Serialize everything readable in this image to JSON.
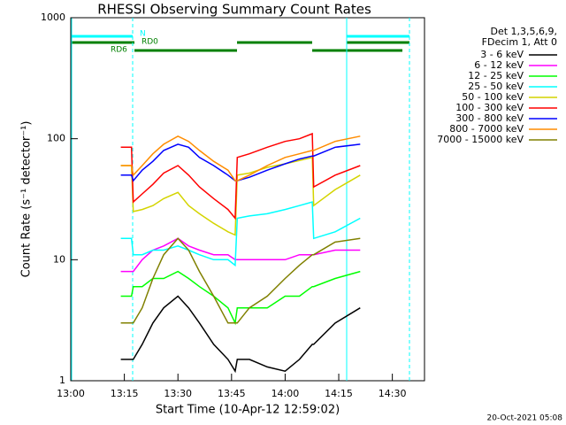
{
  "chart_data": {
    "type": "line",
    "title": "RHESSI Observing Summary Count Rates",
    "xlabel": "Start Time (10-Apr-12 12:59:02)",
    "ylabel": "Count Rate (s⁻¹ detector⁻¹)",
    "footer": "20-Oct-2021 05:08",
    "legend_title": [
      "Det 1,3,5,6,9,",
      "FDecim 1, Att 0"
    ],
    "annotations": [
      "N",
      "RD0",
      "RD6"
    ],
    "log_y": true,
    "xlim": [
      0,
      99
    ],
    "ylim": [
      1,
      1000
    ],
    "xticks": [
      {
        "value": 0,
        "label": "13:00"
      },
      {
        "value": 15,
        "label": "13:15"
      },
      {
        "value": 30,
        "label": "13:30"
      },
      {
        "value": 45,
        "label": "13:45"
      },
      {
        "value": 60,
        "label": "14:00"
      },
      {
        "value": 75,
        "label": "14:15"
      },
      {
        "value": 90,
        "label": "14:30"
      }
    ],
    "yticks": [
      1,
      10,
      100,
      1000
    ],
    "x": [
      14,
      17,
      17.5,
      20,
      23,
      26,
      30,
      33,
      36,
      40,
      44,
      46,
      46.6,
      50,
      55,
      60,
      64,
      67.6,
      68,
      74,
      81
    ],
    "series": [
      {
        "name": "3 - 6 keV",
        "color": "#000000",
        "values": [
          1.5,
          1.5,
          1.5,
          2,
          3,
          4,
          5,
          4,
          3,
          2,
          1.5,
          1.2,
          1.5,
          1.5,
          1.3,
          1.2,
          1.5,
          2,
          2,
          3,
          4
        ]
      },
      {
        "name": "6 - 12 keV",
        "color": "#ff00ff",
        "values": [
          8,
          8,
          8,
          10,
          12,
          13,
          15,
          13,
          12,
          11,
          11,
          10,
          10,
          10,
          10,
          10,
          11,
          11,
          11,
          12,
          12
        ]
      },
      {
        "name": "12 - 25 keV",
        "color": "#00ff00",
        "values": [
          5,
          5,
          6,
          6,
          7,
          7,
          8,
          7,
          6,
          5,
          4,
          3,
          4,
          4,
          4,
          5,
          5,
          6,
          6,
          7,
          8
        ]
      },
      {
        "name": "25 - 50 keV",
        "color": "#00ffff",
        "values": [
          15,
          15,
          11,
          11,
          12,
          12,
          13,
          12,
          11,
          10,
          10,
          9,
          22,
          23,
          24,
          26,
          28,
          30,
          15,
          17,
          22
        ]
      },
      {
        "name": "50 - 100 keV",
        "color": "#d4d400",
        "values": [
          60,
          60,
          25,
          26,
          28,
          32,
          36,
          28,
          24,
          20,
          17,
          16,
          50,
          52,
          58,
          62,
          66,
          70,
          28,
          38,
          50
        ]
      },
      {
        "name": "100 - 300 keV",
        "color": "#ff0000",
        "values": [
          85,
          85,
          30,
          35,
          42,
          52,
          60,
          50,
          40,
          32,
          26,
          22,
          70,
          75,
          85,
          95,
          100,
          110,
          40,
          50,
          60
        ]
      },
      {
        "name": "300 - 800 keV",
        "color": "#0000ff",
        "values": [
          50,
          50,
          45,
          55,
          65,
          80,
          90,
          85,
          70,
          60,
          50,
          45,
          45,
          48,
          55,
          62,
          68,
          72,
          72,
          85,
          90
        ]
      },
      {
        "name": "800 - 7000 keV",
        "color": "#ff8c00",
        "values": [
          60,
          60,
          50,
          60,
          75,
          90,
          105,
          95,
          80,
          65,
          55,
          45,
          45,
          50,
          60,
          70,
          75,
          80,
          80,
          95,
          105
        ]
      },
      {
        "name": "7000 - 15000 keV",
        "color": "#808000",
        "values": [
          3,
          3,
          3,
          4,
          7,
          11,
          15,
          12,
          8,
          5,
          3,
          3,
          3,
          4,
          5,
          7,
          9,
          11,
          11,
          14,
          15
        ]
      }
    ]
  }
}
